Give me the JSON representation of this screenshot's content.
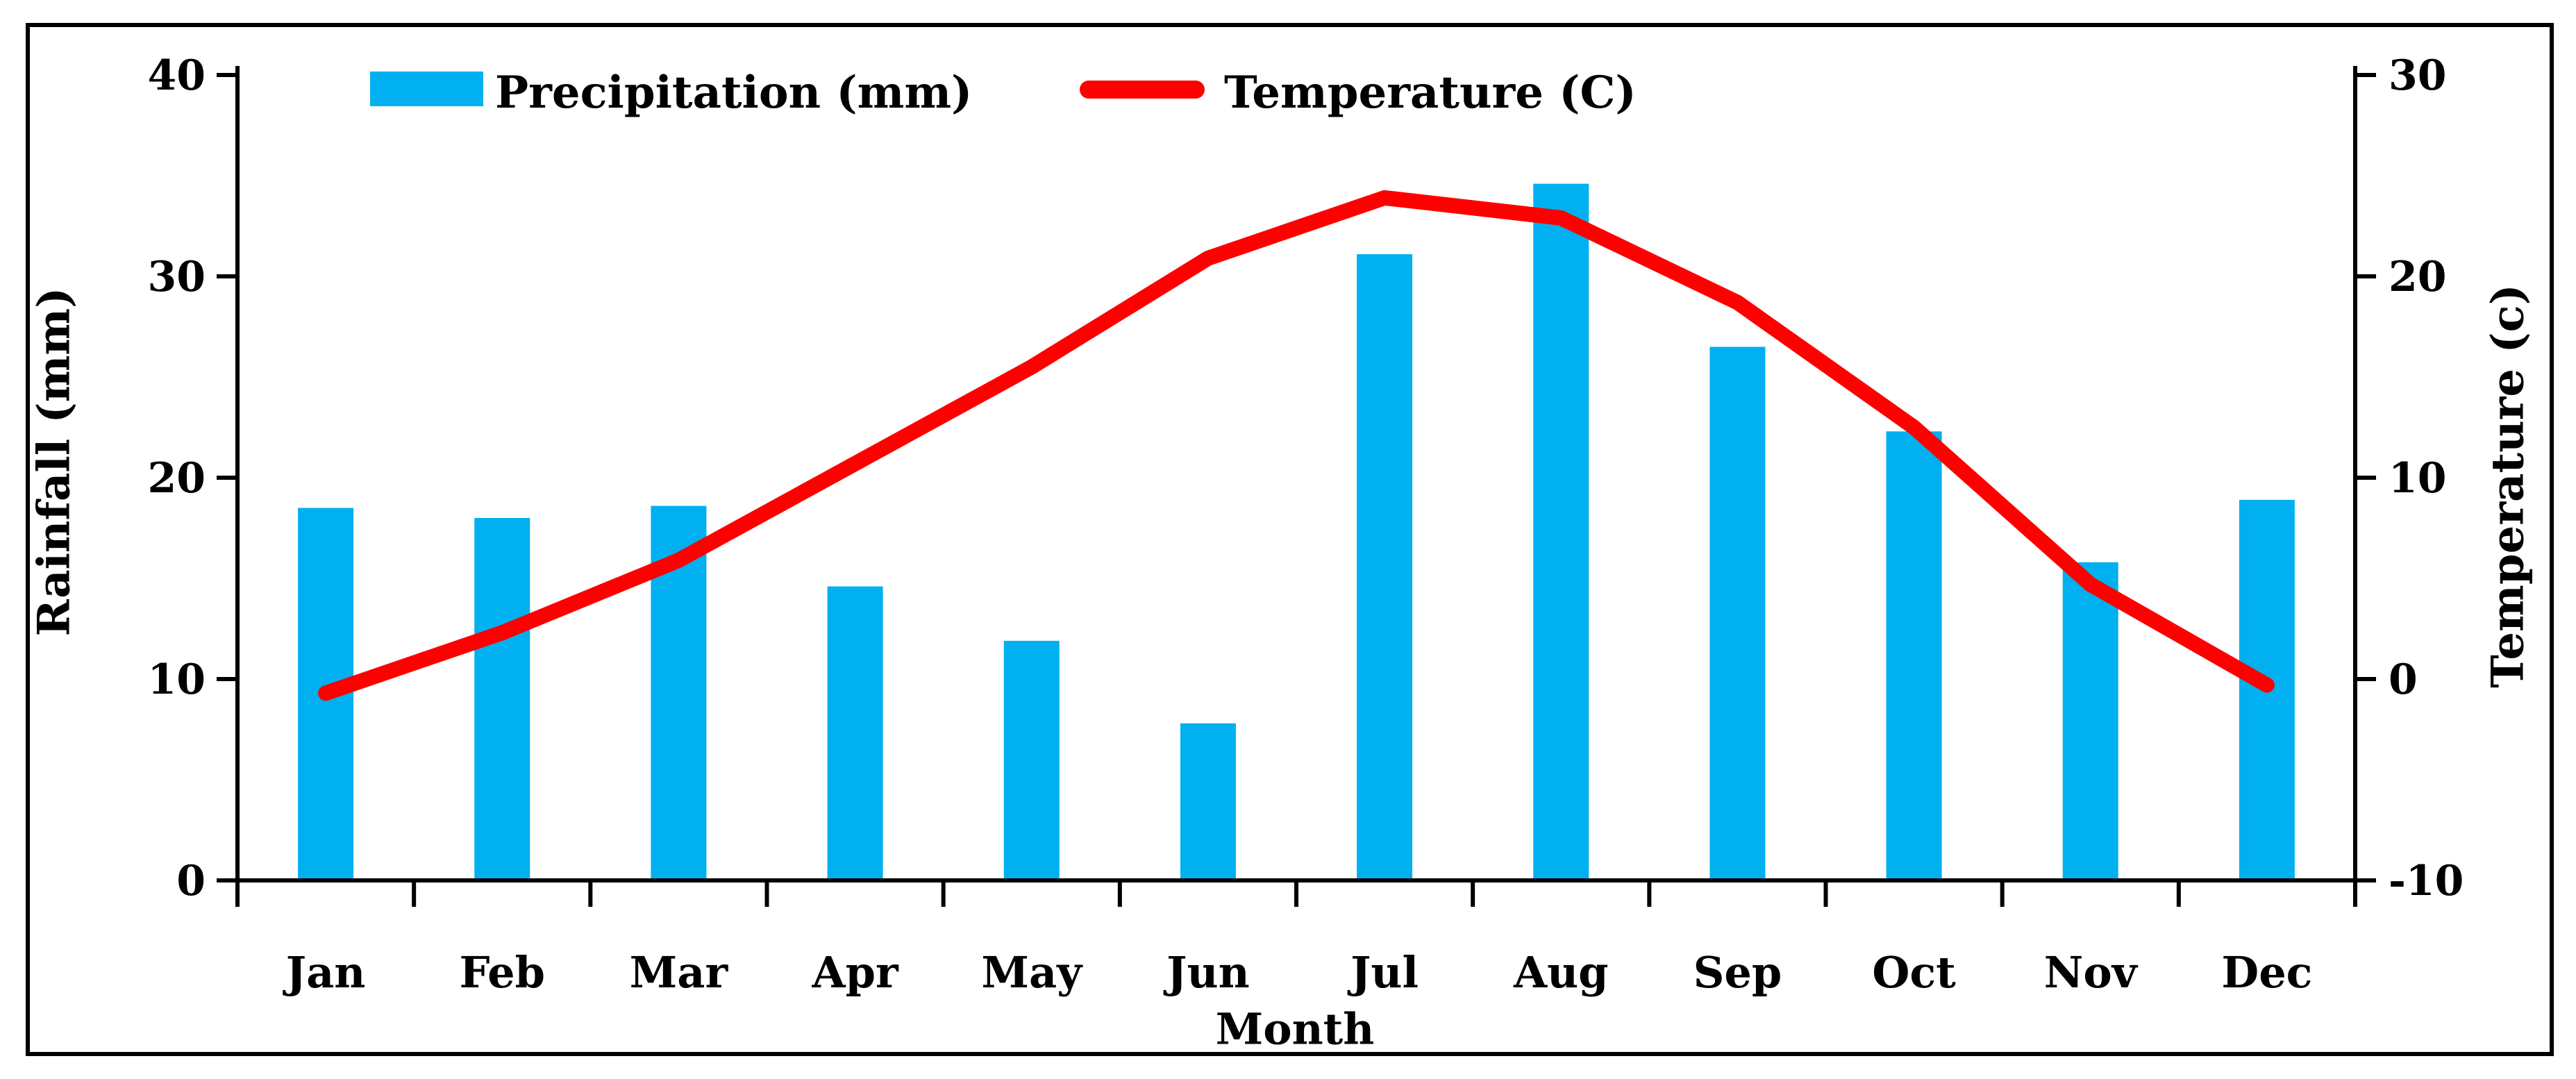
{
  "figure": {
    "background_color": "#FFFFFF",
    "border_color": "#000000"
  },
  "legend": {
    "items": [
      {
        "label": "Precipitation (mm)",
        "swatch": "bar-swatch",
        "color": "#00B0F0"
      },
      {
        "label": "Temperature (C)",
        "swatch": "line-swatch",
        "color": "#FF0000"
      }
    ]
  },
  "chart_data": {
    "type": "bar",
    "subtype": "combo-bar-line",
    "categories": [
      "Jan",
      "Feb",
      "Mar",
      "Apr",
      "May",
      "Jun",
      "Jul",
      "Aug",
      "Sep",
      "Oct",
      "Nov",
      "Dec"
    ],
    "series": [
      {
        "name": "Precipitation (mm)",
        "type": "bar",
        "axis": "left",
        "color": "#00B0F0",
        "values": [
          18.5,
          18.0,
          18.6,
          14.6,
          11.9,
          7.8,
          31.1,
          34.6,
          26.5,
          22.3,
          15.8,
          18.9
        ]
      },
      {
        "name": "Temperature (C)",
        "type": "line",
        "axis": "right",
        "color": "#FF0000",
        "values": [
          -0.7,
          2.3,
          5.9,
          10.7,
          15.5,
          20.9,
          23.9,
          22.9,
          18.7,
          12.5,
          4.7,
          -0.3
        ]
      }
    ],
    "left_axis": {
      "title": "Rainfall (mm)",
      "min": 0,
      "max": 30,
      "ylim": [
        0,
        40
      ],
      "ticks": [
        40,
        30,
        20,
        10,
        0
      ]
    },
    "right_axis": {
      "title": "Temperature  (c)",
      "min": -10,
      "max": 30,
      "ylim": [
        -10,
        30
      ],
      "ticks": [
        30,
        20,
        10,
        0,
        -10
      ]
    },
    "x_axis": {
      "title": "Month"
    },
    "grid": false,
    "legend_position": "top"
  }
}
